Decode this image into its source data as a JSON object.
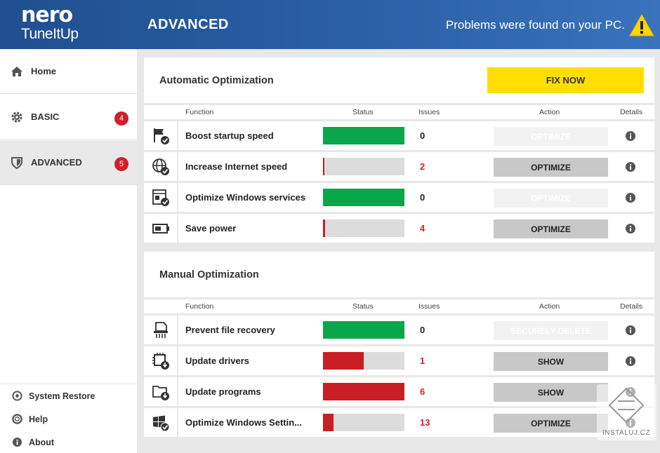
{
  "header": {
    "logo_line1": "nero",
    "logo_line2": "TuneItUp",
    "title": "ADVANCED",
    "problems_text": "Problems were found on your PC.",
    "bg_color": "#2b62a8"
  },
  "sidebar": {
    "items": [
      {
        "label": "Home",
        "icon": "home-icon"
      },
      {
        "label": "BASIC",
        "icon": "gear-icon",
        "badge": "4"
      },
      {
        "label": "ADVANCED",
        "icon": "shield-icon",
        "badge": "5",
        "active": true
      }
    ],
    "bottom": [
      {
        "label": "System Restore",
        "icon": "restore-icon"
      },
      {
        "label": "Help",
        "icon": "help-icon"
      },
      {
        "label": "About",
        "icon": "info-icon"
      }
    ]
  },
  "columns": {
    "function": "Function",
    "status": "Status",
    "issues": "Issues",
    "action": "Action",
    "details": "Details"
  },
  "automatic": {
    "title": "Automatic Optimization",
    "fix_now": "FIX NOW",
    "rows": [
      {
        "name": "Boost startup speed",
        "status_fraction": 1.0,
        "status_color": "#0aa64a",
        "issues": "0",
        "issues_color": "#222222",
        "action": "OPTIMIZE",
        "enabled": false,
        "icon": "startup-flag-icon"
      },
      {
        "name": "Increase Internet speed",
        "status_fraction": 0.02,
        "status_color": "#c81e24",
        "issues": "2",
        "issues_color": "#d0202a",
        "action": "OPTIMIZE",
        "enabled": true,
        "icon": "globe-icon"
      },
      {
        "name": "Optimize Windows services",
        "status_fraction": 1.0,
        "status_color": "#0aa64a",
        "issues": "0",
        "issues_color": "#222222",
        "action": "OPTIMIZE",
        "enabled": false,
        "icon": "services-icon"
      },
      {
        "name": "Save power",
        "status_fraction": 0.03,
        "status_color": "#c81e24",
        "issues": "4",
        "issues_color": "#d0202a",
        "action": "OPTIMIZE",
        "enabled": true,
        "icon": "battery-icon"
      }
    ]
  },
  "manual": {
    "title": "Manual Optimization",
    "rows": [
      {
        "name": "Prevent file recovery",
        "status_fraction": 1.0,
        "status_color": "#0aa64a",
        "issues": "0",
        "issues_color": "#222222",
        "action": "SECURELY DELETE",
        "enabled": false,
        "icon": "shredder-icon"
      },
      {
        "name": "Update drivers",
        "status_fraction": 0.5,
        "status_color": "#c81e24",
        "issues": "1",
        "issues_color": "#d0202a",
        "action": "SHOW",
        "enabled": true,
        "icon": "chip-icon"
      },
      {
        "name": "Update programs",
        "status_fraction": 1.0,
        "status_color": "#c81e24",
        "issues": "6",
        "issues_color": "#d0202a",
        "action": "SHOW",
        "enabled": true,
        "icon": "folder-update-icon"
      },
      {
        "name": "Optimize  Windows  Settin...",
        "status_fraction": 0.13,
        "status_color": "#c81e24",
        "issues": "13",
        "issues_color": "#d0202a",
        "action": "OPTIMIZE",
        "enabled": true,
        "icon": "windows-icon"
      }
    ]
  },
  "watermark": "INSTALUJ.CZ"
}
